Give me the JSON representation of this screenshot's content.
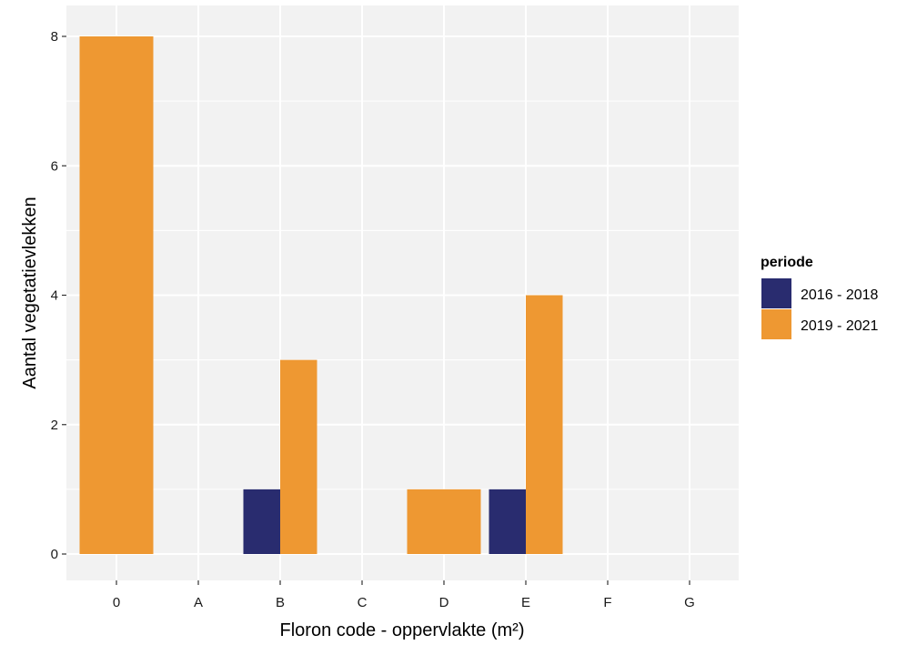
{
  "chart_data": {
    "type": "bar",
    "title": "",
    "xlabel": "Floron code - oppervlakte (m²)",
    "ylabel": "Aantal vegetatievlekken",
    "categories": [
      "0",
      "A",
      "B",
      "C",
      "D",
      "E",
      "F",
      "G"
    ],
    "series": [
      {
        "name": "2016 - 2018",
        "color": "#292C6F",
        "values": [
          0,
          0,
          1,
          0,
          0,
          1,
          0,
          0
        ]
      },
      {
        "name": "2019 - 2021",
        "color": "#EE9832",
        "values": [
          8,
          0,
          3,
          0,
          1,
          4,
          0,
          0
        ]
      }
    ],
    "ylim": [
      0,
      8
    ],
    "yticks": [
      0,
      2,
      4,
      6,
      8
    ],
    "legend": {
      "title": "periode",
      "position": "right"
    },
    "grid": true,
    "panel_color": "#F2F2F2",
    "grid_color": "#FFFFFF"
  }
}
